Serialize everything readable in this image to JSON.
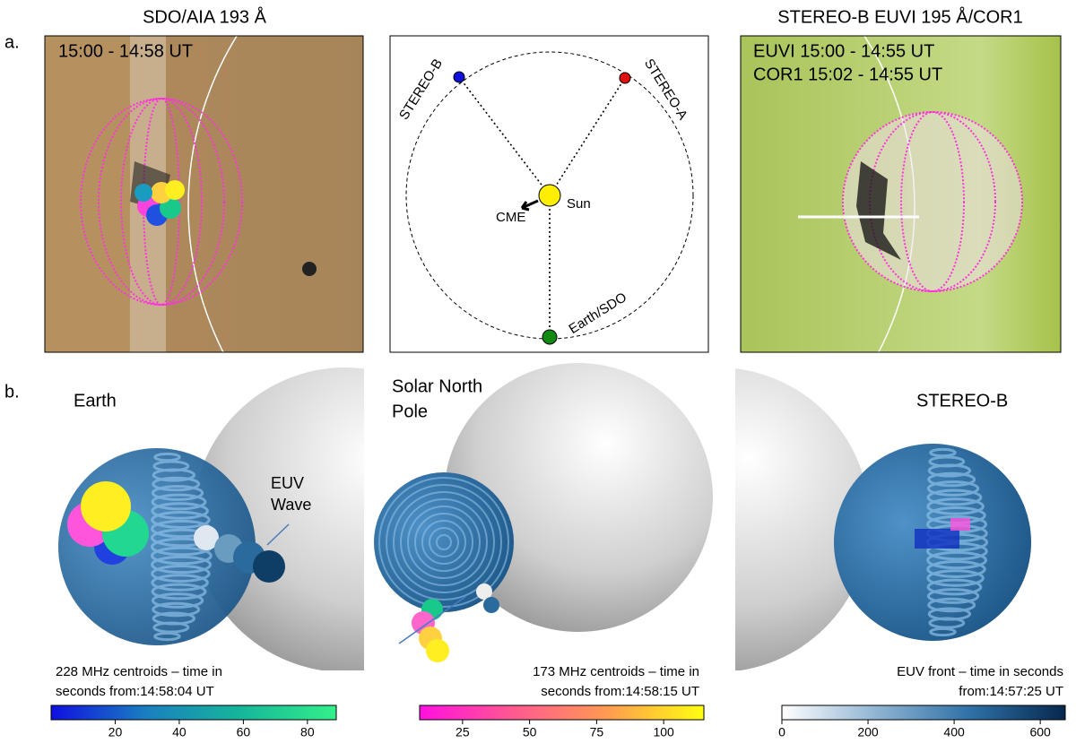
{
  "panel_labels": [
    "a.",
    "b."
  ],
  "top": {
    "aia": {
      "title": "SDO/AIA 193 Å",
      "time": "15:00 - 14:58 UT"
    },
    "diagram": {
      "stereo_b": "STEREO-B",
      "stereo_a": "STEREO-A",
      "sun": "Sun",
      "cme": "CME",
      "earth": "Earth/SDO"
    },
    "stereo": {
      "title": "STEREO-B EUVI 195  Å/COR1",
      "lines": [
        "EUVI 15:00 - 14:55 UT",
        "COR1 15:02 - 14:55 UT"
      ]
    }
  },
  "bottom": {
    "earth_view": {
      "label": "Earth",
      "annotation": [
        "EUV",
        "Wave"
      ]
    },
    "pole_view": {
      "label": [
        "Solar North",
        "Pole"
      ]
    },
    "stereo_view": {
      "label": "STEREO-B"
    }
  },
  "colorbars": [
    {
      "label": [
        "228 MHz centroids – time in",
        "seconds from:14:58:04 UT"
      ],
      "range": [
        0,
        89
      ],
      "ticks": [
        20,
        40,
        60,
        80
      ],
      "colors": [
        "#1010e0",
        "#1a7fc0",
        "#16b69a",
        "#33f08a"
      ]
    },
    {
      "label": [
        "173 MHz centroids – time in",
        "seconds from:14:58:15 UT"
      ],
      "range": [
        9,
        115
      ],
      "ticks": [
        25,
        50,
        75,
        100
      ],
      "colors": [
        "#ff10e0",
        "#ff5a90",
        "#ff9c50",
        "#ffff10"
      ]
    },
    {
      "label": [
        "EUV front – time in seconds",
        "from:14:57:25 UT"
      ],
      "range": [
        0,
        658
      ],
      "ticks": [
        0,
        200,
        400,
        600
      ],
      "colors": [
        "#ffffff",
        "#8fb4d2",
        "#2e70a6",
        "#06284e"
      ]
    }
  ]
}
